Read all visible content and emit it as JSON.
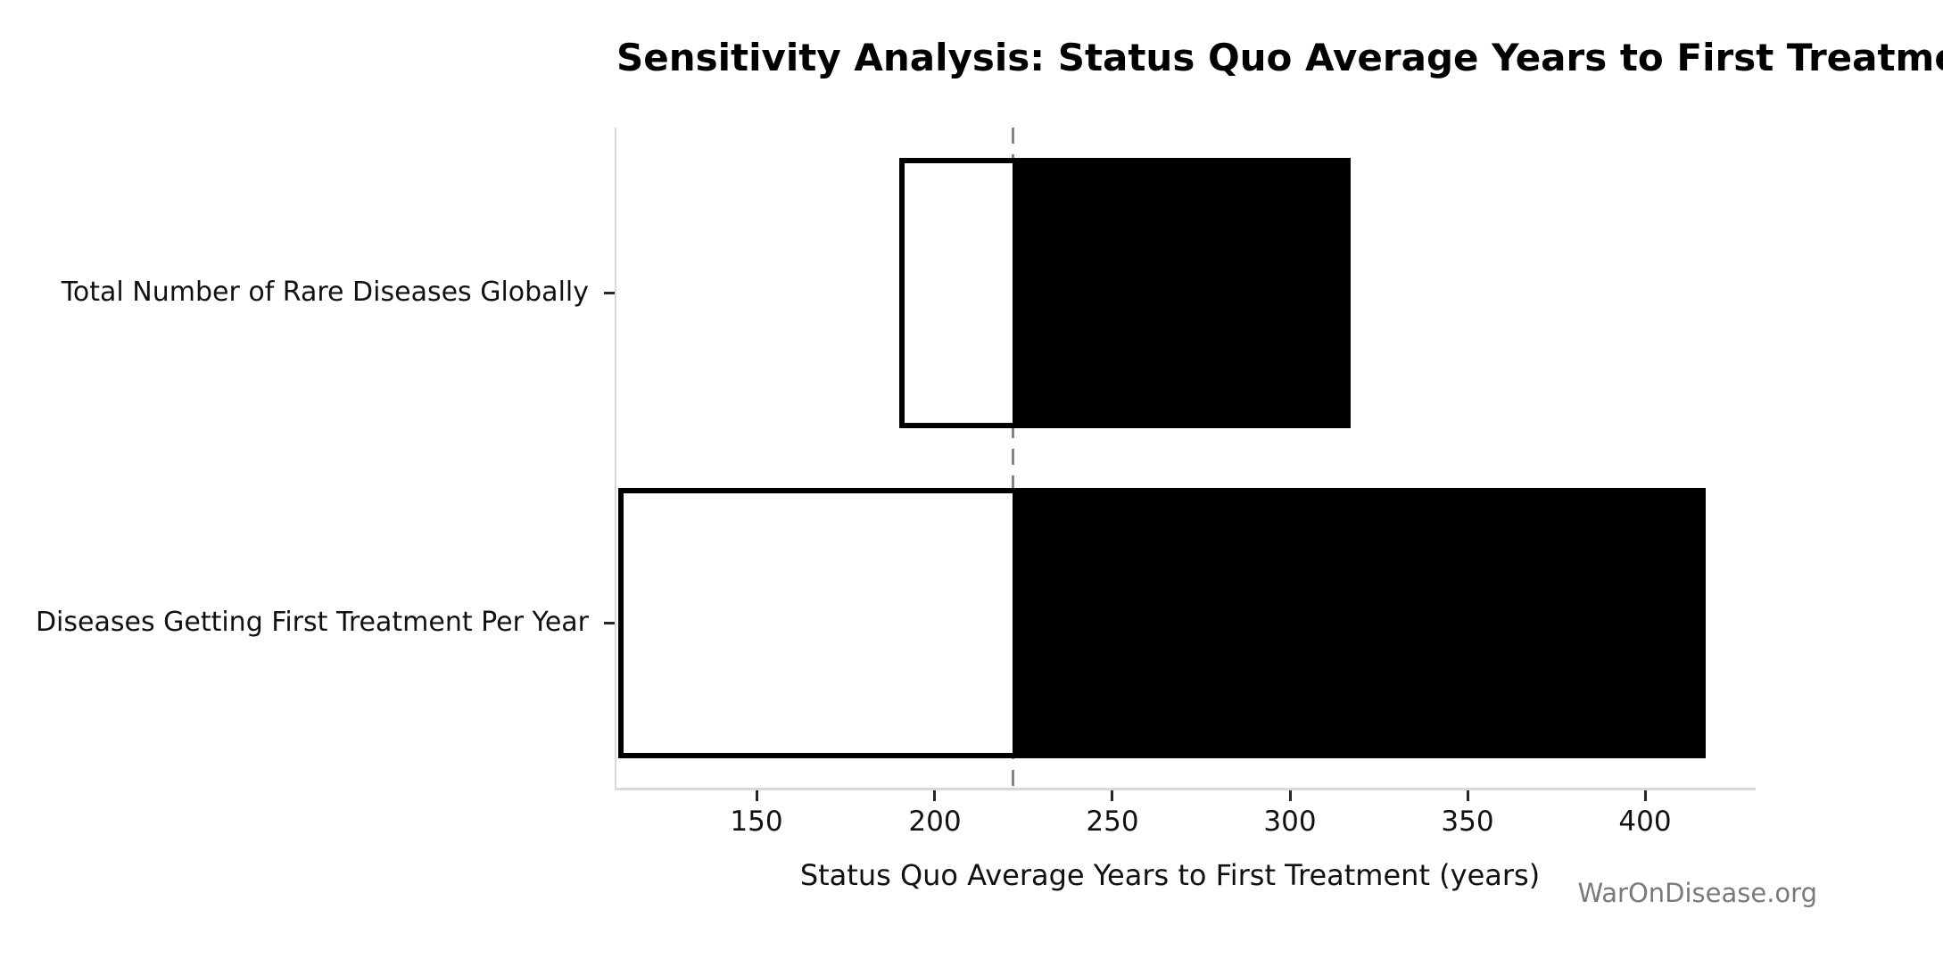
{
  "watermark": "WarOnDisease.org",
  "chart_data": {
    "type": "bar",
    "subtype": "tornado-sensitivity",
    "orientation": "horizontal",
    "title": "Sensitivity Analysis: Status Quo Average Years to First Treatment",
    "xlabel": "Status Quo Average Years to First Treatment (years)",
    "ylabel": "",
    "categories": [
      "Total Number of Rare Diseases Globally",
      "Diseases Getting First Treatment Per Year"
    ],
    "bars": [
      {
        "label": "Total Number of Rare Diseases Globally",
        "low": 190,
        "high": 317
      },
      {
        "label": "Diseases Getting First Treatment Per Year",
        "low": 111,
        "high": 417
      }
    ],
    "baseline": 222,
    "xlim": [
      110.5,
      431
    ],
    "xticks": [
      150,
      200,
      250,
      300,
      350,
      400
    ],
    "grid": false,
    "legend_position": "none",
    "colors": {
      "low_fill": "#ffffff",
      "high_fill": "#000000",
      "edge": "#000000",
      "baseline_line": "#848484",
      "spine": "#d9d9d9",
      "tick": "#262626",
      "text": "#111111",
      "watermark": "#7a7a7a"
    }
  }
}
